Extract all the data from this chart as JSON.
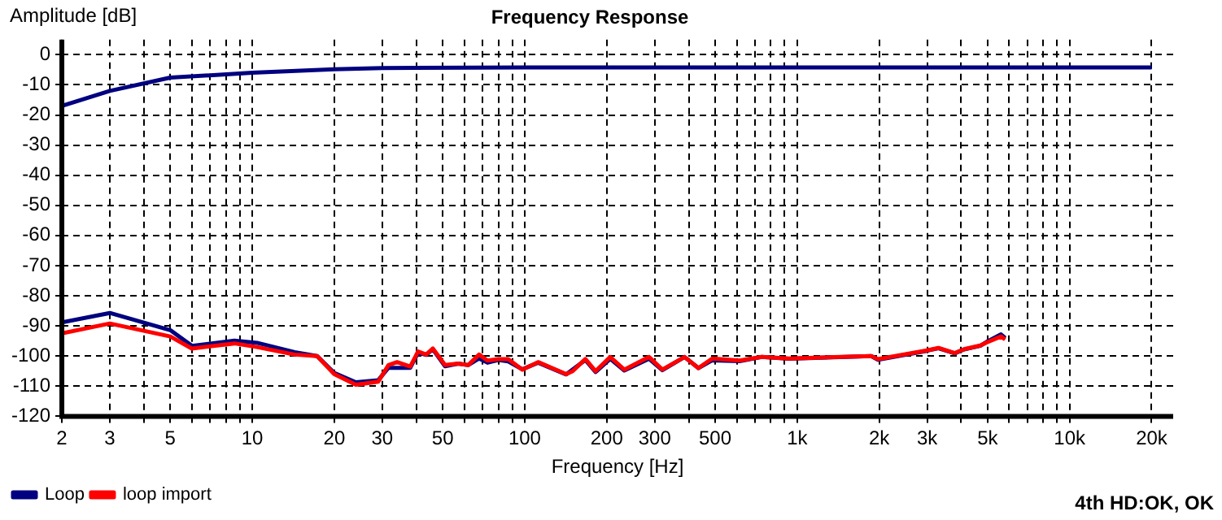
{
  "chart_data": {
    "type": "line",
    "title": "Frequency Response",
    "xlabel": "Frequency [Hz]",
    "ylabel": "Amplitude [dB]",
    "log": "x",
    "grid": true,
    "legend": "bottom left",
    "marker": "none",
    "line_style": "solid",
    "xlim": [
      2,
      24000
    ],
    "ylim": [
      -120,
      5
    ],
    "xticks": [
      2,
      3,
      {
        "value": 4,
        "label": null
      },
      5,
      {
        "value": 6,
        "label": null
      },
      {
        "value": 7,
        "label": null
      },
      {
        "value": 8,
        "label": null
      },
      {
        "value": 9,
        "label": null
      },
      10,
      20,
      30,
      {
        "value": 40,
        "label": null
      },
      50,
      {
        "value": 60,
        "label": null
      },
      {
        "value": 70,
        "label": null
      },
      {
        "value": 80,
        "label": null
      },
      {
        "value": 90,
        "label": null
      },
      100,
      200,
      300,
      {
        "value": 400,
        "label": null
      },
      500,
      {
        "value": 600,
        "label": null
      },
      {
        "value": 700,
        "label": null
      },
      {
        "value": 800,
        "label": null
      },
      {
        "value": 900,
        "label": null
      },
      {
        "value": 1000,
        "label": "1k"
      },
      {
        "value": 2000,
        "label": "2k"
      },
      {
        "value": 3000,
        "label": "3k"
      },
      {
        "value": 4000,
        "label": null
      },
      {
        "value": 5000,
        "label": "5k"
      },
      {
        "value": 6000,
        "label": null
      },
      {
        "value": 7000,
        "label": null
      },
      {
        "value": 8000,
        "label": null
      },
      {
        "value": 9000,
        "label": null
      },
      {
        "value": 10000,
        "label": "10k"
      },
      {
        "value": 20000,
        "label": "20k"
      }
    ],
    "yticks": [
      0,
      -10,
      -20,
      -30,
      -40,
      -50,
      -60,
      -70,
      -80,
      -90,
      -100,
      -110,
      -120
    ],
    "series": [
      {
        "color": "#000080",
        "x": [
          2,
          3,
          5,
          10,
          20,
          30,
          100,
          1000,
          20000
        ],
        "values": [
          -17,
          -12,
          -7.6,
          -6,
          -4.8,
          -4.4,
          -4.2,
          -4.2,
          -4.2
        ]
      },
      {
        "name": "loop import",
        "color": "#ff0000",
        "x": [
          2,
          3,
          5,
          6,
          8.6,
          10.4,
          14.3,
          17.3,
          20,
          24,
          29,
          31.6,
          34,
          38,
          40.6,
          43.5,
          46,
          51,
          57,
          62,
          68,
          73,
          80,
          87,
          98,
          112,
          142,
          150,
          167,
          182,
          206,
          232,
          286,
          320,
          386,
          434,
          488,
          615,
          740,
          933,
          1870,
          1980,
          2970,
          3300,
          3790,
          4100,
          4700,
          4960,
          5600,
          5800
        ],
        "values": [
          -92.5,
          -89.2,
          -93.5,
          -97.5,
          -95.8,
          -97,
          -99.5,
          -100,
          -106,
          -109.5,
          -108.5,
          -103,
          -102,
          -103.5,
          -98.5,
          -99.5,
          -97.5,
          -103,
          -102.5,
          -103,
          -99.5,
          -101.5,
          -101,
          -101,
          -104.5,
          -102,
          -106,
          -105,
          -101,
          -105,
          -100.3,
          -104.5,
          -100.3,
          -104.5,
          -100.3,
          -104,
          -100.8,
          -101.5,
          -100.3,
          -100.8,
          -100,
          -101,
          -98.2,
          -97.3,
          -99,
          -97.7,
          -96.5,
          -95.5,
          -93.5,
          -94.5
        ]
      },
      {
        "name": "Loop",
        "color": "#000080",
        "x": [
          2,
          3,
          5,
          6,
          8.6,
          10.4,
          14.3,
          17.3,
          20,
          24,
          29,
          31.6,
          38,
          40.6,
          43.5,
          46,
          51,
          57,
          62,
          68,
          73,
          80,
          87,
          98,
          112,
          142,
          167,
          182,
          206,
          232,
          286,
          320,
          386,
          434,
          488,
          615,
          740,
          933,
          1870,
          1980,
          2970,
          3300,
          3790,
          4100,
          4700,
          4960,
          5600,
          5800
        ],
        "values": [
          -88.8,
          -85.7,
          -91.4,
          -96.6,
          -94.9,
          -95.6,
          -98.7,
          -100,
          -105.6,
          -108.7,
          -108,
          -103.9,
          -103.9,
          -98.9,
          -99.6,
          -97.7,
          -103.4,
          -102.5,
          -103,
          -100.8,
          -102.2,
          -101.3,
          -101.8,
          -104.4,
          -102.2,
          -106.1,
          -101.3,
          -105.3,
          -100.9,
          -104.8,
          -100.9,
          -104.7,
          -100.3,
          -104,
          -101.4,
          -101.7,
          -100.3,
          -100.9,
          -100,
          -101.2,
          -98.3,
          -97.4,
          -99.1,
          -97.8,
          -96.6,
          -95.3,
          -92.8,
          -94
        ]
      }
    ],
    "annotations": [
      "4th HD:OK, OK"
    ]
  }
}
